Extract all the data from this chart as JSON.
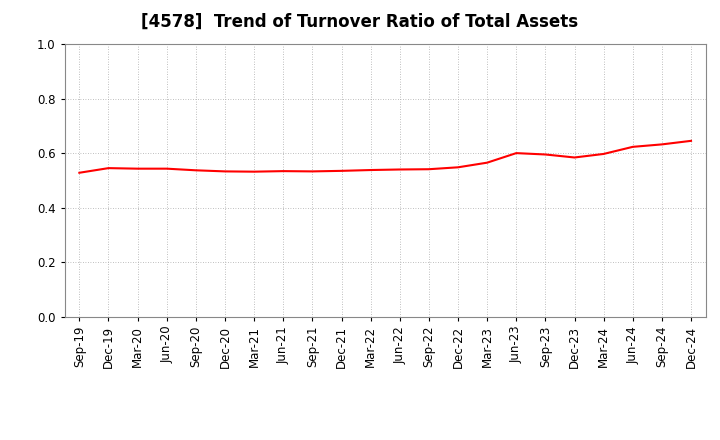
{
  "title": "[4578]  Trend of Turnover Ratio of Total Assets",
  "title_fontsize": 12,
  "line_color": "#ff0000",
  "line_width": 1.5,
  "background_color": "#ffffff",
  "ylim": [
    0.0,
    1.0
  ],
  "yticks": [
    0.0,
    0.2,
    0.4,
    0.6,
    0.8,
    1.0
  ],
  "x_labels": [
    "Sep-19",
    "Dec-19",
    "Mar-20",
    "Jun-20",
    "Sep-20",
    "Dec-20",
    "Mar-21",
    "Jun-21",
    "Sep-21",
    "Dec-21",
    "Mar-22",
    "Jun-22",
    "Sep-22",
    "Dec-22",
    "Mar-23",
    "Jun-23",
    "Sep-23",
    "Dec-23",
    "Mar-24",
    "Jun-24",
    "Sep-24",
    "Dec-24"
  ],
  "values": [
    0.528,
    0.545,
    0.543,
    0.543,
    0.537,
    0.533,
    0.532,
    0.534,
    0.533,
    0.535,
    0.538,
    0.54,
    0.541,
    0.548,
    0.565,
    0.6,
    0.595,
    0.584,
    0.597,
    0.623,
    0.632,
    0.645
  ]
}
